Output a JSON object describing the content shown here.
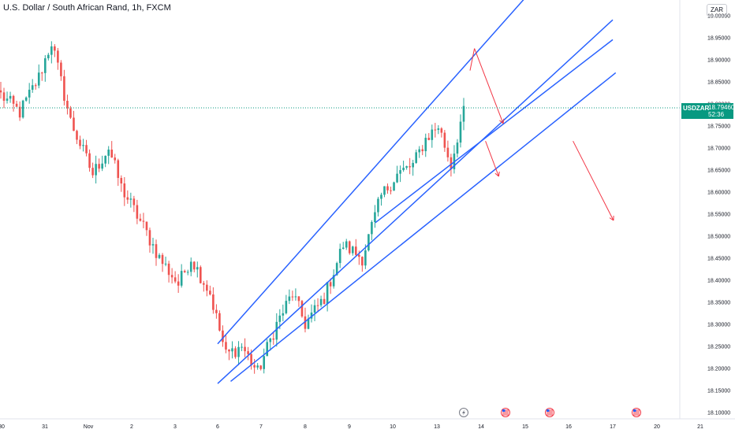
{
  "header": {
    "title": "U.S. Dollar / South African Rand, 1h, FXCM"
  },
  "currency_button": "ZAR",
  "last_price": {
    "symbol": "USDZAR",
    "price": "18.79460",
    "countdown": "52:36"
  },
  "colors": {
    "up": "#26a69a",
    "down": "#ef5350",
    "lines": "#2962ff",
    "arrows": "#f23645",
    "last_price": "#089981"
  },
  "icons": [
    "lightning-icon",
    "us-flag-event-icon",
    "us-flag-event-icon",
    "us-flag-event-icon"
  ],
  "chart_data": {
    "type": "candlestick",
    "title": "U.S. Dollar / South African Rand, 1h, FXCM",
    "ylim": [
      18.085,
      19.035
    ],
    "y_ticks": [
      "19.00000",
      "18.95000",
      "18.90000",
      "18.85000",
      "18.80000",
      "18.75000",
      "18.70000",
      "18.65000",
      "18.60000",
      "18.55000",
      "18.50000",
      "18.45000",
      "18.40000",
      "18.35000",
      "18.30000",
      "18.25000",
      "18.20000",
      "18.15000",
      "18.10000"
    ],
    "x_ticks": [
      "30",
      "31",
      "Nov",
      "2",
      "3",
      "6",
      "7",
      "8",
      "9",
      "10",
      "13",
      "14",
      "15",
      "16",
      "17",
      "20",
      "21"
    ],
    "anchors": [
      {
        "i": 0,
        "c": 18.82
      },
      {
        "i": 6,
        "c": 18.78
      },
      {
        "i": 12,
        "c": 18.86
      },
      {
        "i": 16,
        "c": 18.94
      },
      {
        "i": 22,
        "c": 18.76
      },
      {
        "i": 29,
        "c": 18.64
      },
      {
        "i": 34,
        "c": 18.7
      },
      {
        "i": 38,
        "c": 18.61
      },
      {
        "i": 45,
        "c": 18.52
      },
      {
        "i": 50,
        "c": 18.45
      },
      {
        "i": 56,
        "c": 18.39
      },
      {
        "i": 60,
        "c": 18.45
      },
      {
        "i": 66,
        "c": 18.37
      },
      {
        "i": 71,
        "c": 18.23
      },
      {
        "i": 76,
        "c": 18.25
      },
      {
        "i": 81,
        "c": 18.19
      },
      {
        "i": 87,
        "c": 18.3
      },
      {
        "i": 92,
        "c": 18.37
      },
      {
        "i": 96,
        "c": 18.3
      },
      {
        "i": 102,
        "c": 18.36
      },
      {
        "i": 108,
        "c": 18.48
      },
      {
        "i": 114,
        "c": 18.45
      },
      {
        "i": 120,
        "c": 18.59
      },
      {
        "i": 125,
        "c": 18.64
      },
      {
        "i": 130,
        "c": 18.66
      },
      {
        "i": 134,
        "c": 18.72
      },
      {
        "i": 138,
        "c": 18.75
      },
      {
        "i": 142,
        "c": 18.66
      },
      {
        "i": 146,
        "c": 18.79
      }
    ],
    "trend_lines": [
      {
        "from": [
          "6",
          18.255
        ],
        "to": [
          "15",
          19.04
        ]
      },
      {
        "from": [
          "6",
          18.165
        ],
        "to": [
          "17",
          18.99
        ]
      },
      {
        "from": [
          "9.6",
          18.53
        ],
        "to": [
          "17",
          18.945
        ]
      },
      {
        "from": [
          "6.3",
          18.17
        ],
        "to": [
          "17.2",
          18.87
        ]
      }
    ],
    "annotations": [
      {
        "type": "arrow",
        "from": [
          "13.75",
          18.875
        ],
        "to": [
          "13.85",
          18.925
        ]
      },
      {
        "type": "arrow",
        "from": [
          "13.85",
          18.925
        ],
        "to": [
          "14.5",
          18.755
        ]
      },
      {
        "type": "arrow",
        "from": [
          "14.1",
          18.715
        ],
        "to": [
          "14.4",
          18.635
        ]
      },
      {
        "type": "arrow",
        "from": [
          "16.1",
          18.715
        ],
        "to": [
          "17.05",
          18.535
        ]
      }
    ],
    "last_price": 18.7946
  }
}
